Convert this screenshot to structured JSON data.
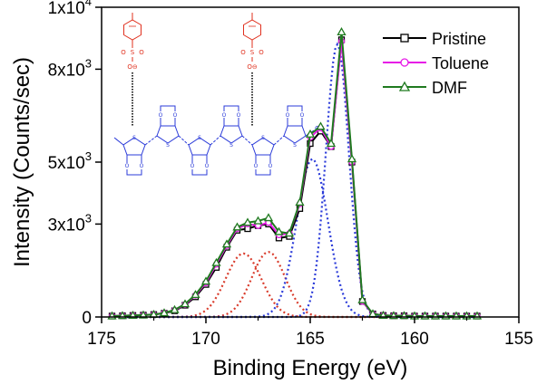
{
  "chart_data": {
    "type": "line",
    "title": "",
    "xlabel": "Binding Energy (eV)",
    "ylabel": "Intensity (Counts/sec)",
    "xlim": [
      175,
      155
    ],
    "ylim": [
      0,
      10000
    ],
    "x_reversed": true,
    "x_ticks": [
      175,
      170,
      165,
      160,
      155
    ],
    "x_tick_labels": [
      "175",
      "170",
      "165",
      "160",
      "155"
    ],
    "y_ticks": [
      0,
      3000,
      5000,
      8000,
      10000
    ],
    "y_tick_labels": [
      {
        "base": "0",
        "exp": ""
      },
      {
        "base": "3x10",
        "exp": "3"
      },
      {
        "base": "5x10",
        "exp": "3"
      },
      {
        "base": "8x10",
        "exp": "3"
      },
      {
        "base": "1x10",
        "exp": "4"
      }
    ],
    "legend_position": "top-right",
    "legend": [
      "Pristine",
      "Toluene",
      "DMF"
    ],
    "series": [
      {
        "name": "Pristine",
        "color": "#000000",
        "marker": "square",
        "x": [
          174.5,
          174.0,
          173.5,
          173.0,
          172.5,
          172.0,
          171.5,
          171.0,
          170.5,
          170.0,
          169.5,
          169.0,
          168.5,
          168.0,
          167.5,
          167.0,
          166.5,
          166.0,
          165.5,
          165.0,
          164.5,
          164.0,
          163.5,
          163.0,
          162.5,
          162.0,
          161.5,
          161.0,
          160.5,
          160.0,
          159.5,
          159.0,
          158.5,
          158.0,
          157.5,
          157.0
        ],
        "y": [
          30,
          40,
          50,
          60,
          80,
          120,
          200,
          380,
          650,
          1050,
          1600,
          2250,
          2800,
          2850,
          2950,
          3000,
          2550,
          2600,
          3500,
          5600,
          6000,
          5500,
          8950,
          5000,
          500,
          100,
          50,
          40,
          40,
          30,
          30,
          30,
          30,
          30,
          30,
          30
        ]
      },
      {
        "name": "Toluene",
        "color": "#e619e6",
        "marker": "circle",
        "x": [
          174.5,
          174.0,
          173.5,
          173.0,
          172.5,
          172.0,
          171.5,
          171.0,
          170.5,
          170.0,
          169.5,
          169.0,
          168.5,
          168.0,
          167.5,
          167.0,
          166.5,
          166.0,
          165.5,
          165.0,
          164.5,
          164.0,
          163.5,
          163.0,
          162.5,
          162.0,
          161.5,
          161.0,
          160.5,
          160.0,
          159.5,
          159.0,
          158.5,
          158.0,
          157.5,
          157.0
        ],
        "y": [
          30,
          40,
          50,
          60,
          80,
          130,
          220,
          400,
          700,
          1100,
          1700,
          2300,
          2850,
          3000,
          2950,
          3050,
          2650,
          2700,
          3650,
          5800,
          6100,
          5500,
          8900,
          5000,
          500,
          100,
          50,
          40,
          40,
          30,
          30,
          30,
          30,
          30,
          30,
          30
        ]
      },
      {
        "name": "DMF",
        "color": "#1f7a1f",
        "marker": "triangle",
        "x": [
          174.5,
          174.0,
          173.5,
          173.0,
          172.5,
          172.0,
          171.5,
          171.0,
          170.5,
          170.0,
          169.5,
          169.0,
          168.5,
          168.0,
          167.5,
          167.0,
          166.5,
          166.0,
          165.5,
          165.0,
          164.5,
          164.0,
          163.5,
          163.0,
          162.5,
          162.0,
          161.5,
          161.0,
          160.5,
          160.0,
          159.5,
          159.0,
          158.5,
          158.0,
          157.5,
          157.0
        ],
        "y": [
          30,
          40,
          50,
          60,
          80,
          130,
          230,
          420,
          720,
          1150,
          1750,
          2350,
          2900,
          3050,
          3100,
          3200,
          2750,
          2700,
          3700,
          5900,
          6150,
          5600,
          9200,
          5100,
          550,
          100,
          50,
          40,
          40,
          30,
          30,
          30,
          30,
          30,
          30,
          30
        ]
      }
    ],
    "fit_peaks": [
      {
        "color": "#d93b2b",
        "center": 168.2,
        "amplitude": 2050,
        "sigma": 0.85
      },
      {
        "color": "#d93b2b",
        "center": 167.0,
        "amplitude": 2100,
        "sigma": 0.8
      },
      {
        "color": "#2b3bd9",
        "center": 164.9,
        "amplitude": 5100,
        "sigma": 0.75
      },
      {
        "color": "#2b3bd9",
        "center": 163.7,
        "amplitude": 8800,
        "sigma": 0.55
      }
    ]
  },
  "molecule": {
    "tosylate_color": "#e0301e",
    "backbone_color": "#2b3bd9",
    "tosylate_charge_label": "O⊖",
    "sulfonate_labels": [
      "O",
      "S",
      "O"
    ],
    "backbone_charge_label": "⊕"
  }
}
